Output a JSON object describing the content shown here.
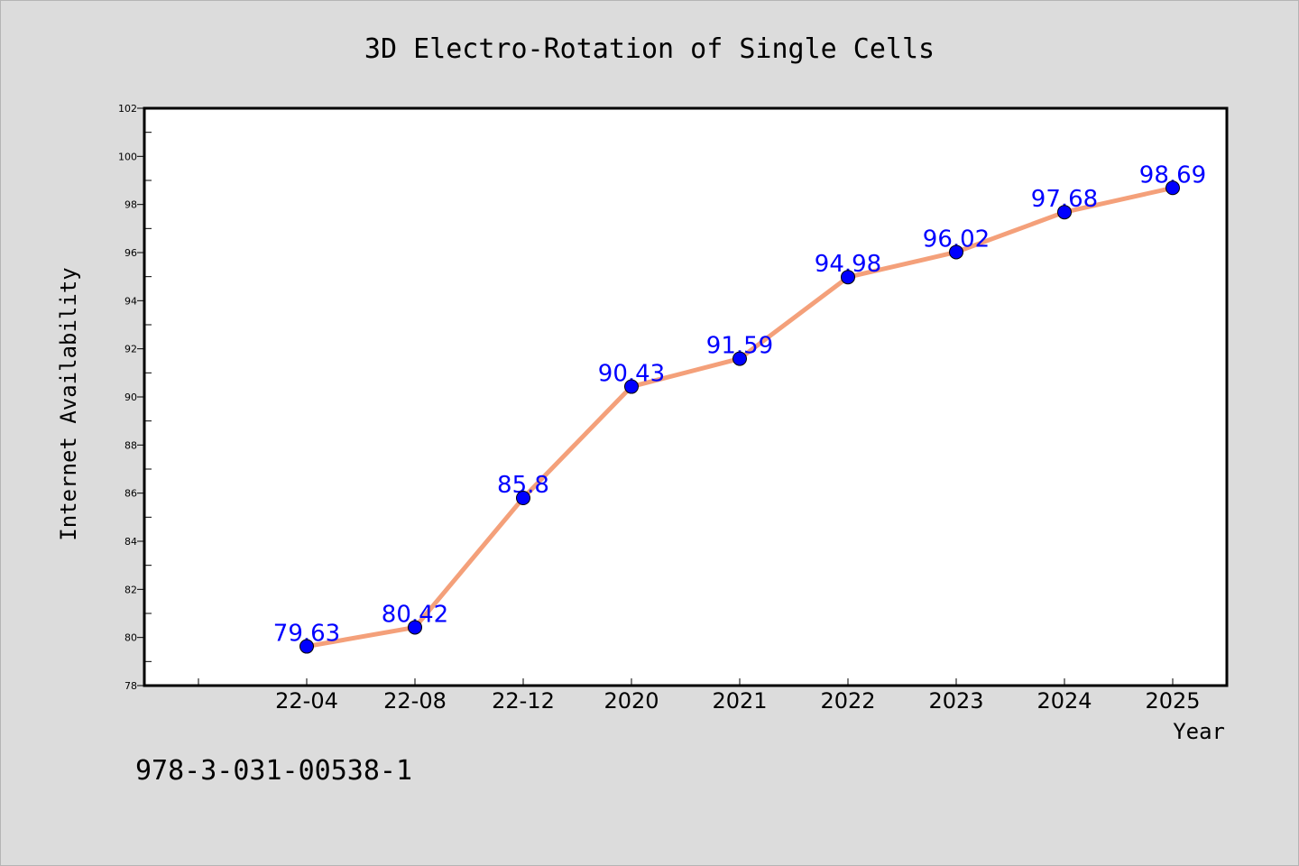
{
  "colors": {
    "background": "#dcdcdc",
    "plot_background": "#ffffff",
    "line": "#f4a07a",
    "marker_fill": "#0000ff",
    "data_label": "#0000ff"
  },
  "footnote": "978-3-031-00538-1",
  "chart_data": {
    "type": "line",
    "title": "3D Electro-Rotation of Single Cells",
    "xlabel": "Year",
    "ylabel": "Internet Availability",
    "categories": [
      "22-04",
      "22-08",
      "22-12",
      "2020",
      "2021",
      "2022",
      "2023",
      "2024",
      "2025"
    ],
    "series": [
      {
        "values": [
          79.63,
          80.42,
          85.8,
          90.43,
          91.59,
          94.98,
          96.02,
          97.68,
          98.69
        ],
        "labels": [
          "79.63",
          "80.42",
          "85.8",
          "90.43",
          "91.59",
          "94.98",
          "96.02",
          "97.68",
          "98.69"
        ]
      }
    ],
    "ylim": [
      78,
      102
    ],
    "yticks": [
      78,
      80,
      82,
      84,
      86,
      88,
      90,
      92,
      94,
      96,
      98,
      100,
      102
    ],
    "grid": false,
    "legend": "none"
  }
}
